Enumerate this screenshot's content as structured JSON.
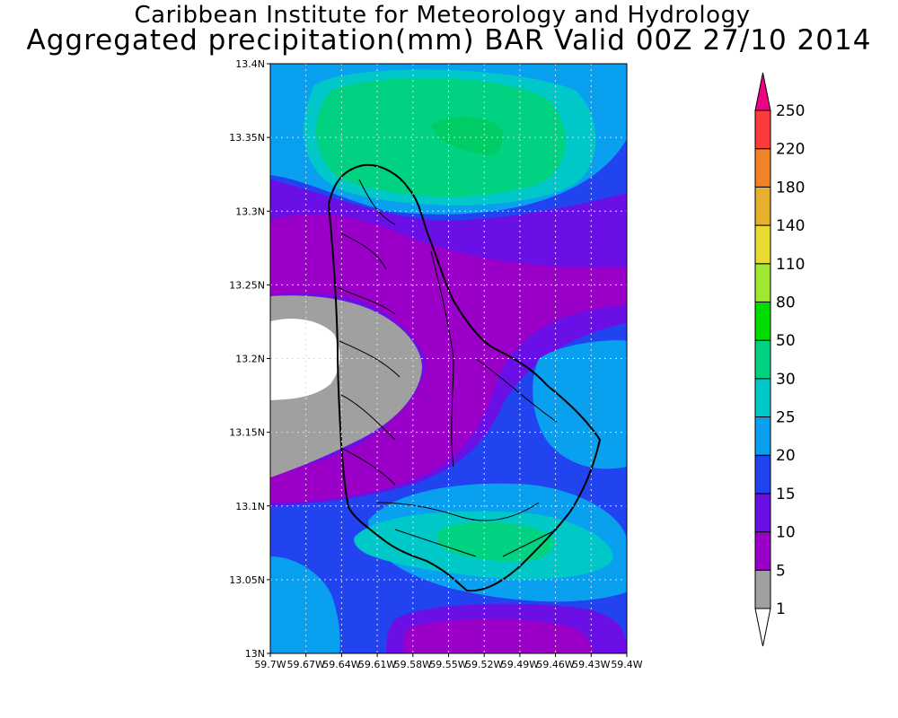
{
  "title_line1": "Caribbean Institute for Meteorology and Hydrology",
  "title_line2": "Aggregated precipitation(mm) BAR Valid 00Z 27/10 2014",
  "map": {
    "type": "filled-contour",
    "lon_range": [
      -59.7,
      -59.4
    ],
    "lat_range": [
      13.0,
      13.4
    ],
    "grid": true,
    "x_tick_labels": [
      "59.7W",
      "59.67W",
      "59.64W",
      "59.61W",
      "59.58W",
      "59.55W",
      "59.52W",
      "59.49W",
      "59.46W",
      "59.43W",
      "59.4W"
    ],
    "y_tick_labels": [
      "13N",
      "13.05N",
      "13.1N",
      "13.15N",
      "13.2N",
      "13.25N",
      "13.3N",
      "13.35N",
      "13.4N"
    ]
  },
  "colorbar": {
    "levels": [
      "1",
      "5",
      "10",
      "15",
      "20",
      "25",
      "30",
      "50",
      "80",
      "110",
      "140",
      "180",
      "220",
      "250"
    ],
    "colors": [
      "#ffffff",
      "#a0a0a0",
      "#9a00c8",
      "#6a10e6",
      "#2244f0",
      "#0aa0f0",
      "#00c8c8",
      "#00d282",
      "#00dc00",
      "#a0e632",
      "#e6dc32",
      "#e6af2d",
      "#f08228",
      "#fa3c3c",
      "#f00082"
    ]
  },
  "colors": {
    "c1_5": "#a0a0a0",
    "c5_10": "#9a00c8",
    "c10_15": "#6a10e6",
    "c15_20": "#2244f0",
    "c20_25": "#0aa0f0",
    "c25_30": "#00c8c8",
    "c30_50": "#00d282",
    "below1": "#ffffff"
  }
}
